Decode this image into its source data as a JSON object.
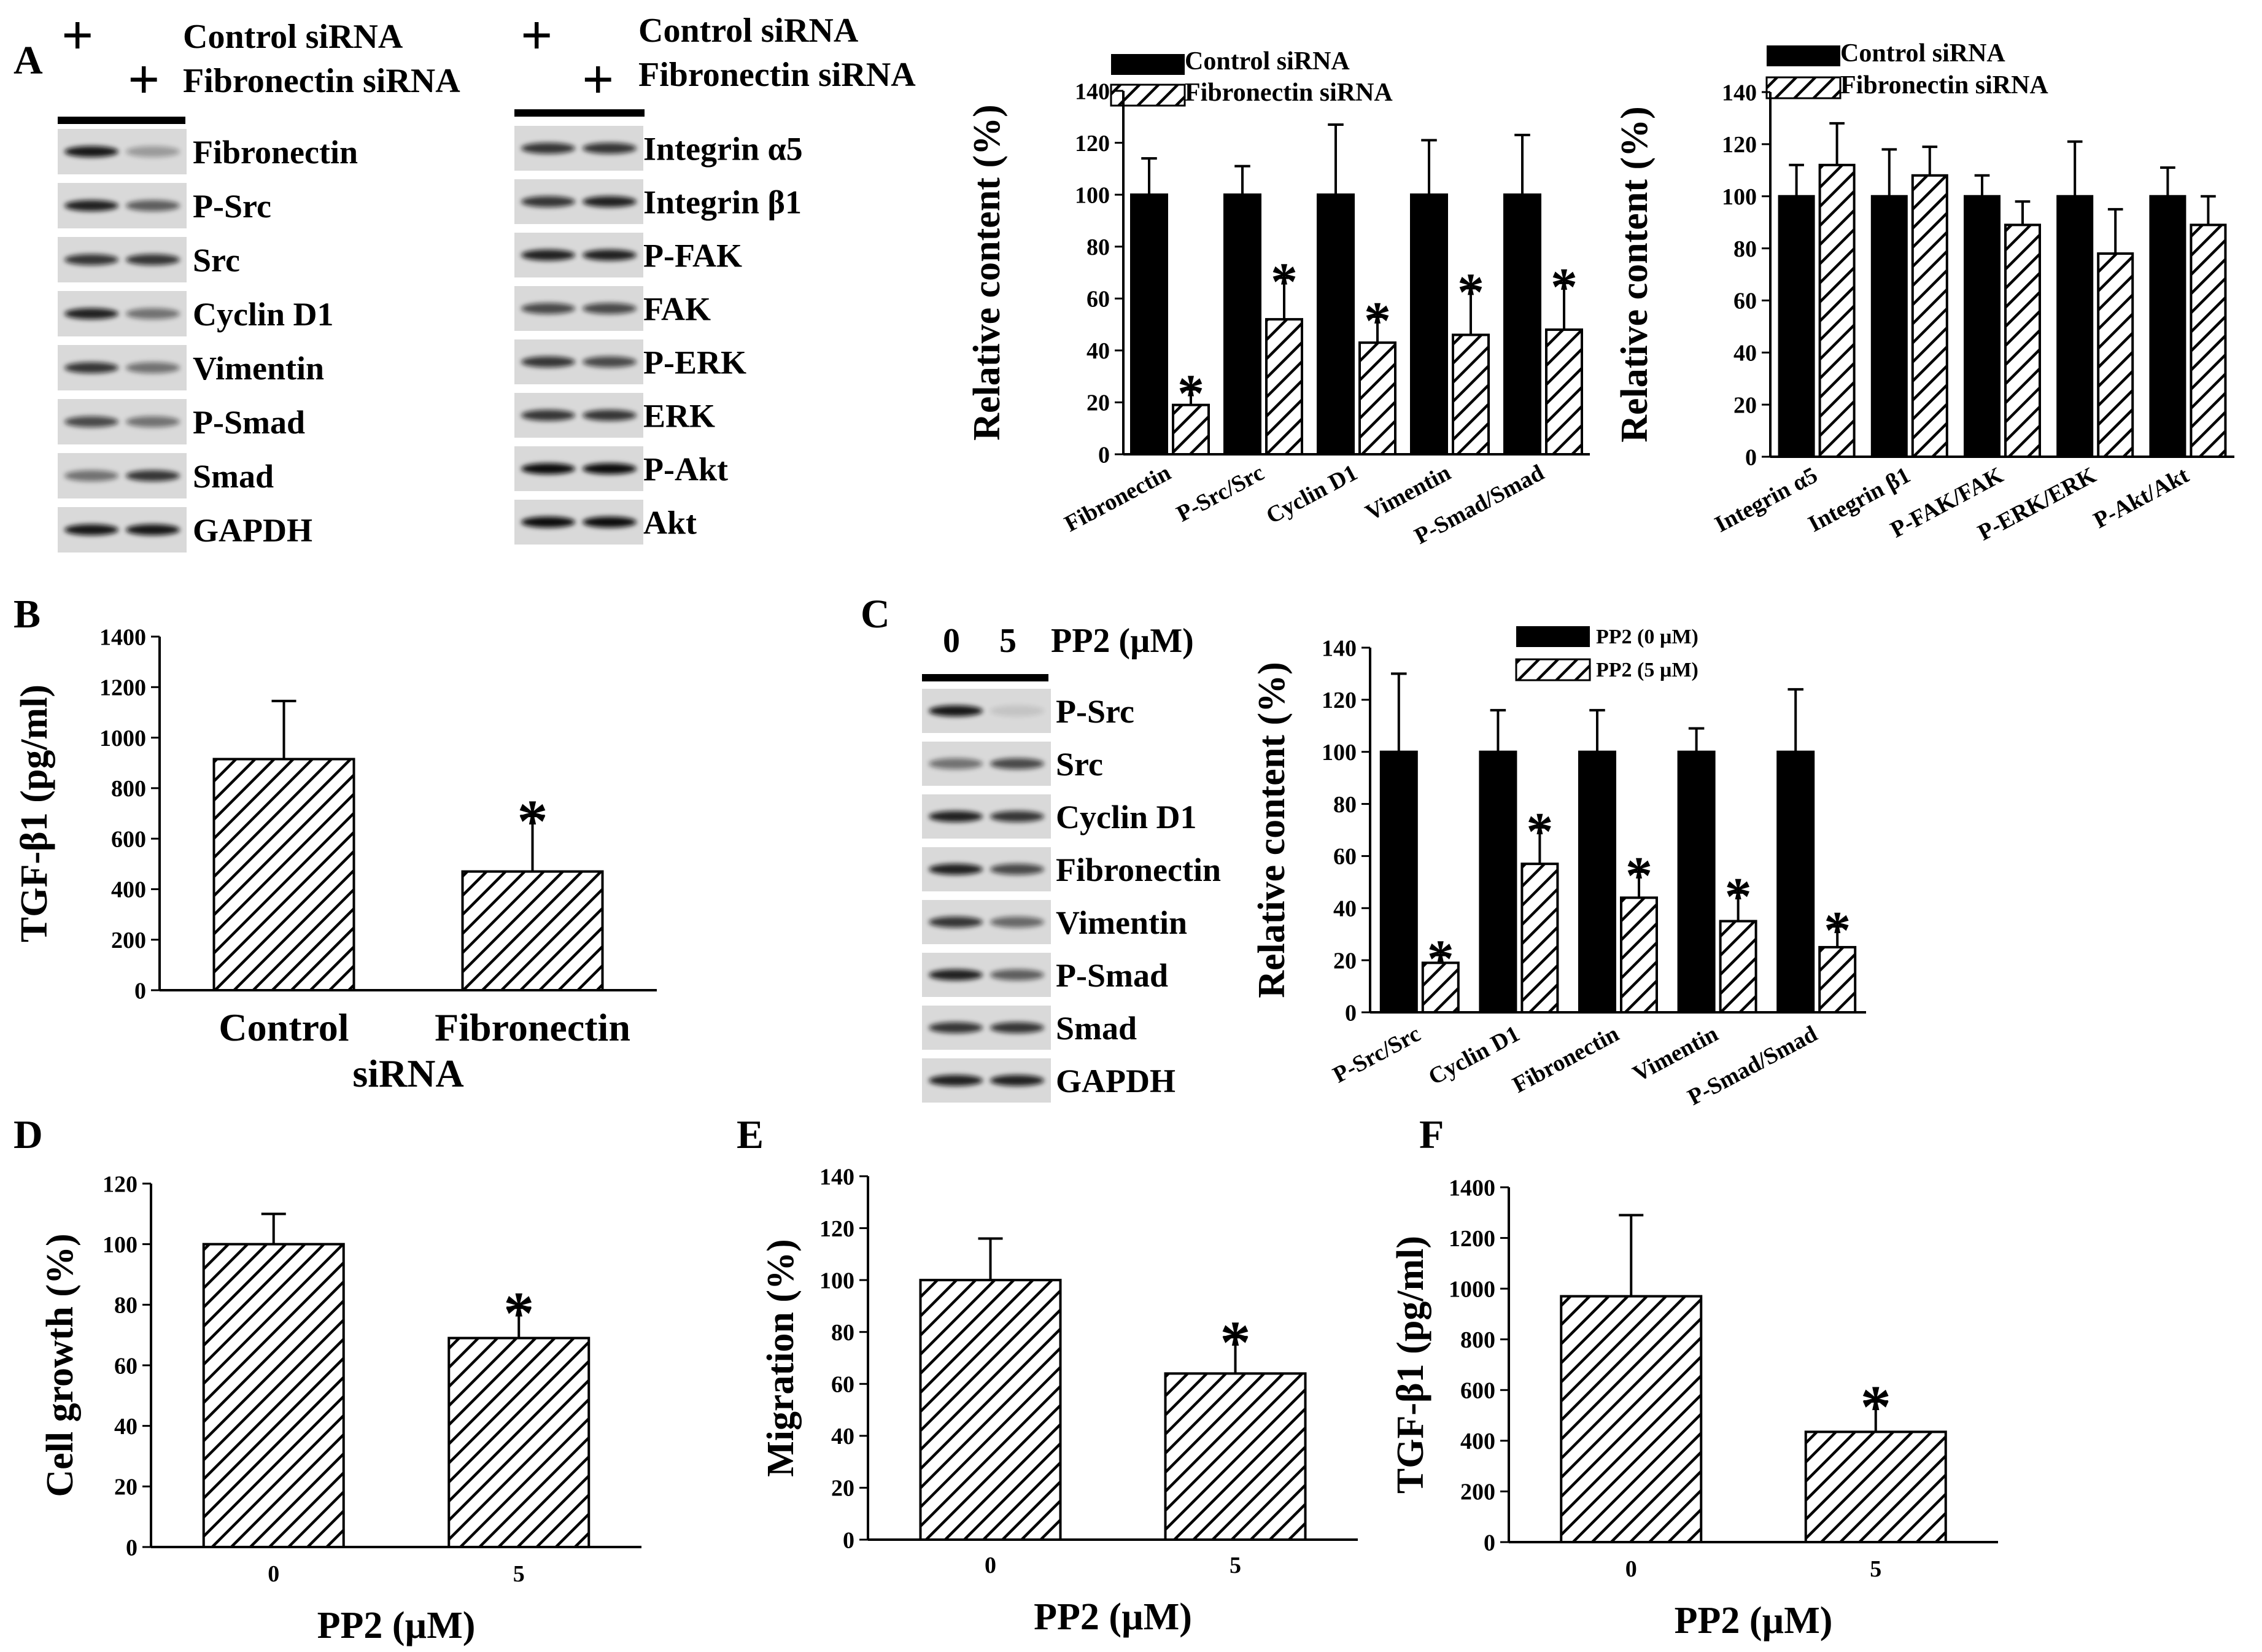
{
  "panel_labels": {
    "a": "A",
    "b": "B",
    "c": "C",
    "d": "D",
    "e": "E",
    "f": "F"
  },
  "legend_siRNA": {
    "control": "Control siRNA",
    "fn": "Fibronectin siRNA"
  },
  "legend_pp2": {
    "p0": "PP2 (0 µM)",
    "p5": "PP2 (5 µM)"
  },
  "blot_A1": {
    "plus1": "+",
    "plus2": "+",
    "bands": [
      "Fibronectin",
      "P-Src",
      "Src",
      "Cyclin D1",
      "Vimentin",
      "P-Smad",
      "Smad",
      "GAPDH"
    ]
  },
  "blot_A2": {
    "plus1": "+",
    "plus2": "+",
    "bands": [
      "Integrin α5",
      "Integrin β1",
      "P-FAK",
      "FAK",
      "P-ERK",
      "ERK",
      "P-Akt",
      "Akt"
    ]
  },
  "blot_C": {
    "lane0": "0",
    "lane5": "5",
    "header": "PP2 (µM)",
    "bands": [
      "P-Src",
      "Src",
      "Cyclin D1",
      "Fibronectin",
      "Vimentin",
      "P-Smad",
      "Smad",
      "GAPDH"
    ]
  },
  "chart_data": [
    {
      "id": "A_left",
      "type": "bar",
      "ylabel": "Relative content (%)",
      "ylim": [
        0,
        140
      ],
      "yticks": [
        0,
        20,
        40,
        60,
        80,
        100,
        120,
        140
      ],
      "categories": [
        "Fibronectin",
        "P-Src/Src",
        "Cyclin D1",
        "Vimentin",
        "P-Smad/Smad"
      ],
      "series": [
        {
          "name": "Control siRNA",
          "values": [
            100,
            100,
            100,
            100,
            100
          ],
          "errors": [
            14,
            11,
            27,
            21,
            23
          ]
        },
        {
          "name": "Fibronectin siRNA",
          "values": [
            19,
            52,
            43,
            46,
            48
          ],
          "errors": [
            6,
            16,
            10,
            18,
            18
          ],
          "significant": [
            true,
            true,
            true,
            true,
            true
          ]
        }
      ]
    },
    {
      "id": "A_right",
      "type": "bar",
      "ylabel": "Relative content (%)",
      "ylim": [
        0,
        140
      ],
      "yticks": [
        0,
        20,
        40,
        60,
        80,
        100,
        120,
        140
      ],
      "categories": [
        "Integrin α5",
        "Integrin β1",
        "P-FAK/FAK",
        "P-ERK/ERK",
        "P-Akt/Akt"
      ],
      "series": [
        {
          "name": "Control siRNA",
          "values": [
            100,
            100,
            100,
            100,
            100
          ],
          "errors": [
            12,
            18,
            8,
            21,
            11
          ]
        },
        {
          "name": "Fibronectin siRNA",
          "values": [
            112,
            108,
            89,
            78,
            89
          ],
          "errors": [
            16,
            11,
            9,
            17,
            11
          ]
        }
      ]
    },
    {
      "id": "B",
      "type": "bar",
      "ylabel": "TGF-β1 (pg/ml)",
      "ylim": [
        0,
        1400
      ],
      "yticks": [
        0,
        200,
        400,
        600,
        800,
        1000,
        1200,
        1400
      ],
      "categories": [
        "Control",
        "Fibronectin"
      ],
      "xlabel": "siRNA",
      "values": [
        915,
        470
      ],
      "errors": [
        230,
        220
      ],
      "significant": [
        false,
        true
      ]
    },
    {
      "id": "C",
      "type": "bar",
      "ylabel": "Relative content (%)",
      "ylim": [
        0,
        140
      ],
      "yticks": [
        0,
        20,
        40,
        60,
        80,
        100,
        120,
        140
      ],
      "categories": [
        "P-Src/Src",
        "Cyclin D1",
        "Fibronectin",
        "Vimentin",
        "P-Smad/Smad"
      ],
      "series": [
        {
          "name": "PP2 (0 µM)",
          "values": [
            100,
            100,
            100,
            100,
            100
          ],
          "errors": [
            30,
            16,
            16,
            9,
            24
          ]
        },
        {
          "name": "PP2 (5 µM)",
          "values": [
            19,
            57,
            44,
            35,
            25
          ],
          "errors": [
            3,
            14,
            10,
            11,
            8
          ],
          "significant": [
            true,
            true,
            true,
            true,
            true
          ]
        }
      ]
    },
    {
      "id": "D",
      "type": "bar",
      "ylabel": "Cell growth (%)",
      "xlabel": "PP2 (µM)",
      "ylim": [
        0,
        120
      ],
      "yticks": [
        0,
        20,
        40,
        60,
        80,
        100,
        120
      ],
      "categories": [
        "0",
        "5"
      ],
      "values": [
        100,
        69
      ],
      "errors": [
        10,
        10
      ],
      "significant": [
        false,
        true
      ]
    },
    {
      "id": "E",
      "type": "bar",
      "ylabel": "Migration (%)",
      "xlabel": "PP2 (µM)",
      "ylim": [
        0,
        140
      ],
      "yticks": [
        0,
        20,
        40,
        60,
        80,
        100,
        120,
        140
      ],
      "categories": [
        "0",
        "5"
      ],
      "values": [
        100,
        64
      ],
      "errors": [
        16,
        14
      ],
      "significant": [
        false,
        true
      ]
    },
    {
      "id": "F",
      "type": "bar",
      "ylabel": "TGF-β1 (pg/ml)",
      "xlabel": "PP2 (µM)",
      "ylim": [
        0,
        1400
      ],
      "yticks": [
        0,
        200,
        400,
        600,
        800,
        1000,
        1200,
        1400
      ],
      "categories": [
        "0",
        "5"
      ],
      "values": [
        970,
        435
      ],
      "errors": [
        320,
        120
      ],
      "significant": [
        false,
        true
      ]
    }
  ]
}
